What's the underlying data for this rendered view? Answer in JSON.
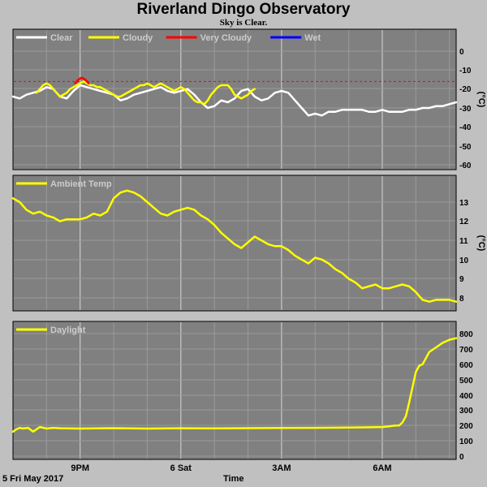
{
  "header": {
    "title": "Riverland Dingo Observatory",
    "subtitle": "Sky is Clear."
  },
  "footer": {
    "date": "5 Fri May 2017",
    "xlabel": "Time"
  },
  "colors": {
    "background": "#c0c0c0",
    "plot": "#808080",
    "clear": "#ffffff",
    "cloudy": "#ffff00",
    "very_cloudy": "#ff0000",
    "wet": "#0000ff",
    "threshold": "#ff0000"
  },
  "chart_data": [
    {
      "type": "line",
      "name": "sky",
      "ylabel": "(°C)",
      "ylim": [
        -60,
        0
      ],
      "yticks": [
        "0",
        "-10",
        "-20",
        "-30",
        "-40",
        "-50",
        "-60"
      ],
      "xlim": [
        0,
        13.2
      ],
      "xticks": [
        "9PM",
        "6 Sat",
        "3AM",
        "6AM"
      ],
      "xtick_hours": [
        2,
        5,
        8,
        11
      ],
      "grid": true,
      "legend": [
        "Clear",
        "Cloudy",
        "Very Cloudy",
        "Wet"
      ],
      "threshold": -16,
      "series": [
        {
          "name": "Clear",
          "x": [
            0,
            0.2,
            0.4,
            0.6,
            0.8,
            1.0,
            1.2,
            1.4,
            1.6,
            1.8,
            2.0,
            2.2,
            2.4,
            2.6,
            2.8,
            3.0,
            3.2,
            3.4,
            3.6,
            3.8,
            4.0,
            4.2,
            4.4,
            4.6,
            4.8,
            5.0,
            5.2,
            5.4,
            5.6,
            5.8,
            6.0,
            6.2,
            6.4,
            6.6,
            6.8,
            7.0,
            7.2,
            7.4,
            7.6,
            7.8,
            8.0,
            8.2,
            8.4,
            8.6,
            8.8,
            9.0,
            9.2,
            9.4,
            9.6,
            9.8,
            10.0,
            10.2,
            10.4,
            10.6,
            10.8,
            11.0,
            11.2,
            11.4,
            11.6,
            11.8,
            12.0,
            12.2,
            12.4,
            12.6,
            12.8,
            13.0,
            13.2
          ],
          "y": [
            -24,
            -25,
            -23,
            -22,
            -21,
            -19,
            -20,
            -24,
            -25,
            -21,
            -18,
            -19,
            -20,
            -21,
            -22,
            -23,
            -26,
            -25,
            -23,
            -22,
            -21,
            -20,
            -19,
            -21,
            -22,
            -21,
            -20,
            -23,
            -27,
            -30,
            -29,
            -26,
            -27,
            -25,
            -21,
            -20,
            -24,
            -26,
            -25,
            -22,
            -21,
            -22,
            -26,
            -30,
            -34,
            -33,
            -34,
            -32,
            -32,
            -31,
            -31,
            -31,
            -31,
            -32,
            -32,
            -31,
            -32,
            -32,
            -32,
            -31,
            -31,
            -30,
            -30,
            -29,
            -29,
            -28,
            -27
          ]
        },
        {
          "name": "Cloudy",
          "x": [
            0.7,
            0.8,
            0.9,
            1.0,
            1.1,
            1.2,
            1.3,
            1.4,
            1.5,
            1.6,
            1.7,
            1.8,
            1.9,
            2.0,
            2.1,
            2.2,
            2.3,
            2.4,
            2.5,
            2.6,
            2.7,
            2.8,
            2.9,
            3.0,
            3.1,
            3.2,
            3.3,
            3.4,
            3.5,
            3.6,
            3.7,
            3.8,
            3.9,
            4.0,
            4.1,
            4.2,
            4.3,
            4.4,
            4.5,
            4.6,
            4.7,
            4.8,
            4.9,
            5.0,
            5.1,
            5.2,
            5.3,
            5.4,
            5.5,
            5.6,
            5.7,
            5.8,
            5.9,
            6.0,
            6.1,
            6.2,
            6.3,
            6.4,
            6.5,
            6.6,
            6.7,
            6.8,
            6.9,
            7.0,
            7.1,
            7.2
          ],
          "y": [
            -22,
            -20,
            -18,
            -17,
            -18,
            -20,
            -22,
            -24,
            -23,
            -22,
            -20,
            -19,
            -18,
            -17,
            -16,
            -17,
            -18,
            -18,
            -19,
            -19,
            -20,
            -21,
            -22,
            -23,
            -24,
            -24,
            -23,
            -22,
            -21,
            -20,
            -19,
            -18,
            -18,
            -17,
            -18,
            -19,
            -18,
            -17,
            -18,
            -19,
            -20,
            -21,
            -20,
            -19,
            -20,
            -22,
            -24,
            -26,
            -27,
            -27,
            -28,
            -26,
            -23,
            -21,
            -19,
            -18,
            -18,
            -18,
            -20,
            -23,
            -24,
            -25,
            -24,
            -23,
            -21,
            -20
          ]
        },
        {
          "name": "Very Cloudy",
          "x": [
            1.85,
            1.95,
            2.05,
            2.15,
            2.25
          ],
          "y": [
            -17,
            -15,
            -14,
            -15,
            -17
          ]
        },
        {
          "name": "Wet",
          "x": [],
          "y": []
        }
      ]
    },
    {
      "type": "line",
      "name": "ambient",
      "ylabel": "(°C)",
      "ylim": [
        7.5,
        14
      ],
      "yticks": [
        "13",
        "12",
        "11",
        "10",
        "9",
        "8"
      ],
      "xlim": [
        0,
        13.2
      ],
      "grid": true,
      "legend": [
        "Ambient Temp"
      ],
      "series": [
        {
          "name": "Ambient Temp",
          "x": [
            0,
            0.2,
            0.4,
            0.6,
            0.8,
            1.0,
            1.2,
            1.4,
            1.6,
            1.8,
            2.0,
            2.2,
            2.4,
            2.6,
            2.8,
            3.0,
            3.2,
            3.4,
            3.6,
            3.8,
            4.0,
            4.2,
            4.4,
            4.6,
            4.8,
            5.0,
            5.2,
            5.4,
            5.6,
            5.8,
            6.0,
            6.2,
            6.4,
            6.6,
            6.8,
            7.0,
            7.2,
            7.4,
            7.6,
            7.8,
            8.0,
            8.2,
            8.4,
            8.6,
            8.8,
            9.0,
            9.2,
            9.4,
            9.6,
            9.8,
            10.0,
            10.2,
            10.4,
            10.6,
            10.8,
            11.0,
            11.2,
            11.4,
            11.6,
            11.8,
            12.0,
            12.2,
            12.4,
            12.6,
            12.8,
            13.0,
            13.2
          ],
          "y": [
            13.2,
            13.0,
            12.6,
            12.4,
            12.5,
            12.3,
            12.2,
            12.0,
            12.1,
            12.1,
            12.1,
            12.2,
            12.4,
            12.3,
            12.5,
            13.2,
            13.5,
            13.6,
            13.5,
            13.3,
            13.0,
            12.7,
            12.4,
            12.3,
            12.5,
            12.6,
            12.7,
            12.6,
            12.3,
            12.1,
            11.8,
            11.4,
            11.1,
            10.8,
            10.6,
            10.9,
            11.2,
            11.0,
            10.8,
            10.7,
            10.7,
            10.5,
            10.2,
            10.0,
            9.8,
            10.1,
            10.0,
            9.8,
            9.5,
            9.3,
            9.0,
            8.8,
            8.5,
            8.6,
            8.7,
            8.5,
            8.5,
            8.6,
            8.7,
            8.6,
            8.3,
            7.9,
            7.8,
            7.9,
            7.9,
            7.9,
            7.8
          ]
        }
      ]
    },
    {
      "type": "line",
      "name": "daylight",
      "ylim": [
        0,
        820
      ],
      "yticks": [
        "800",
        "700",
        "600",
        "500",
        "400",
        "300",
        "200",
        "100",
        "0"
      ],
      "xlim": [
        0,
        13.2
      ],
      "grid": true,
      "legend": [
        "Daylight"
      ],
      "series": [
        {
          "name": "Daylight",
          "x": [
            0,
            0.1,
            0.2,
            0.3,
            0.45,
            0.6,
            0.8,
            1.0,
            1.2,
            1.4,
            2.0,
            3.0,
            4.0,
            5.0,
            6.0,
            7.0,
            8.0,
            9.0,
            10.0,
            10.5,
            11.0,
            11.2,
            11.4,
            11.5,
            11.6,
            11.7,
            11.8,
            11.9,
            12.0,
            12.1,
            12.2,
            12.3,
            12.4,
            12.6,
            12.8,
            13.0,
            13.2
          ],
          "y": [
            160,
            175,
            185,
            180,
            185,
            160,
            190,
            180,
            185,
            182,
            180,
            183,
            180,
            182,
            181,
            183,
            184,
            185,
            187,
            188,
            190,
            195,
            200,
            200,
            220,
            260,
            350,
            450,
            550,
            590,
            600,
            640,
            680,
            710,
            740,
            760,
            770
          ]
        }
      ]
    }
  ]
}
